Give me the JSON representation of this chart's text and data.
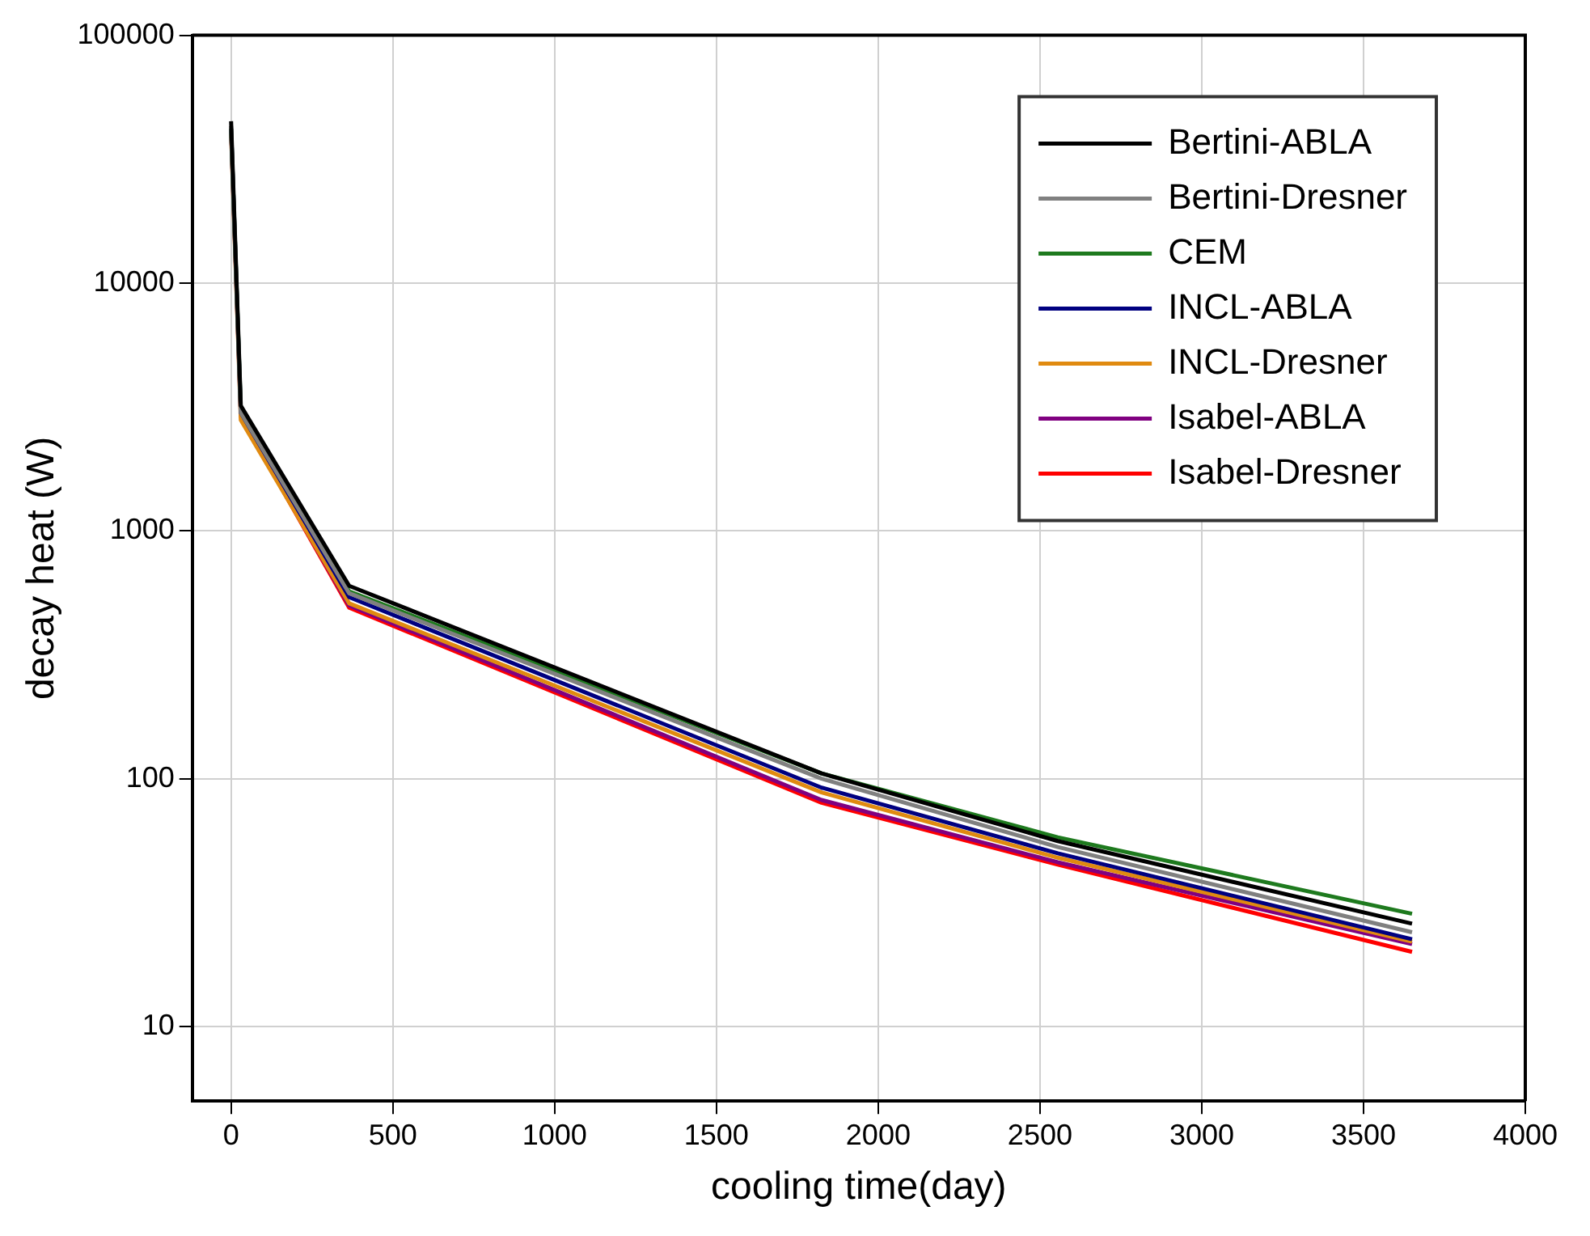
{
  "chart_data": {
    "type": "line",
    "xlabel": "cooling time(day)",
    "ylabel": "decay heat (W)",
    "x": [
      0,
      30,
      365,
      1825,
      2555,
      3650
    ],
    "series": [
      {
        "name": "Bertini-ABLA",
        "color": "#000000",
        "values": [
          45000,
          3200,
          600,
          105,
          56,
          26
        ]
      },
      {
        "name": "Bertini-Dresner",
        "color": "#808080",
        "values": [
          43000,
          3000,
          560,
          100,
          53,
          24
        ]
      },
      {
        "name": "CEM",
        "color": "#1e7a1e",
        "values": [
          42000,
          3100,
          570,
          105,
          58,
          28.5
        ]
      },
      {
        "name": "INCL-ABLA",
        "color": "#000080",
        "values": [
          42000,
          3000,
          540,
          92,
          50,
          22.5
        ]
      },
      {
        "name": "INCL-Dresner",
        "color": "#e08a10",
        "values": [
          40000,
          2800,
          510,
          88,
          48,
          22
        ]
      },
      {
        "name": "Isabel-ABLA",
        "color": "#800080",
        "values": [
          41000,
          2900,
          500,
          82,
          46,
          21.5
        ]
      },
      {
        "name": "Isabel-Dresner",
        "color": "#ff0000",
        "values": [
          null,
          2900,
          490,
          80,
          45,
          20
        ]
      }
    ],
    "xlim": [
      -120,
      4000
    ],
    "xticks": [
      0,
      500,
      1000,
      1500,
      2000,
      2500,
      3000,
      3500,
      4000
    ],
    "ylim": [
      5,
      100000
    ],
    "yticks": [
      10,
      100,
      1000,
      10000,
      100000
    ],
    "log": "y",
    "grid": true,
    "legend": "top right",
    "marker": "none",
    "line_style": "solid"
  }
}
